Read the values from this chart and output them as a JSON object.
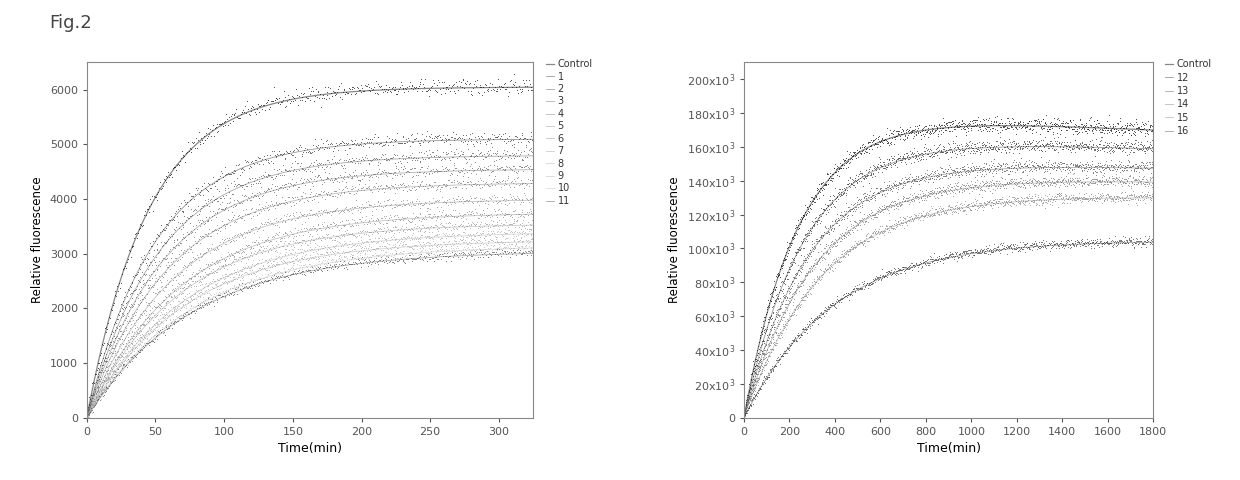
{
  "fig_title": "Fig.2",
  "left": {
    "xlabel": "Time(min)",
    "ylabel": "Relative fluorescence",
    "xlim": [
      0,
      325
    ],
    "ylim": [
      0,
      6500
    ],
    "xticks": [
      0,
      50,
      100,
      150,
      200,
      250,
      300
    ],
    "yticks": [
      0,
      1000,
      2000,
      3000,
      4000,
      5000,
      6000
    ],
    "series": [
      {
        "label": "Control",
        "Amax": 6050,
        "k": 0.022,
        "color": "#111111",
        "lw": 1.5
      },
      {
        "label": "1",
        "Amax": 5100,
        "k": 0.02,
        "color": "#333333",
        "lw": 1.0
      },
      {
        "label": "2",
        "Amax": 4800,
        "k": 0.019,
        "color": "#555555",
        "lw": 1.0
      },
      {
        "label": "3",
        "Amax": 4550,
        "k": 0.018,
        "color": "#666666",
        "lw": 1.0
      },
      {
        "label": "4",
        "Amax": 4300,
        "k": 0.017,
        "color": "#777777",
        "lw": 1.0
      },
      {
        "label": "5",
        "Amax": 4000,
        "k": 0.016,
        "color": "#888888",
        "lw": 1.0
      },
      {
        "label": "6",
        "Amax": 3750,
        "k": 0.015,
        "color": "#888888",
        "lw": 1.0
      },
      {
        "label": "7",
        "Amax": 3550,
        "k": 0.015,
        "color": "#999999",
        "lw": 1.0
      },
      {
        "label": "8",
        "Amax": 3400,
        "k": 0.014,
        "color": "#aaaaaa",
        "lw": 1.0
      },
      {
        "label": "9",
        "Amax": 3250,
        "k": 0.014,
        "color": "#aaaaaa",
        "lw": 1.0
      },
      {
        "label": "10",
        "Amax": 3150,
        "k": 0.013,
        "color": "#bbbbbb",
        "lw": 1.0
      },
      {
        "label": "11",
        "Amax": 3050,
        "k": 0.013,
        "color": "#555555",
        "lw": 1.0
      }
    ]
  },
  "right": {
    "xlabel": "Time(min)",
    "ylabel": "Relative fluorescence",
    "xlim": [
      0,
      1800
    ],
    "ylim": [
      0,
      210000
    ],
    "xticks": [
      0,
      200,
      400,
      600,
      800,
      1000,
      1200,
      1400,
      1600,
      1800
    ],
    "yticks": [
      0,
      20000,
      40000,
      60000,
      80000,
      100000,
      120000,
      140000,
      160000,
      180000,
      200000
    ],
    "series": [
      {
        "label": "Control",
        "Amax": 178000,
        "k": 0.0042,
        "decline": 3.5e-05,
        "color": "#111111",
        "lw": 1.5
      },
      {
        "label": "12",
        "Amax": 165000,
        "k": 0.0038,
        "decline": 2.8e-05,
        "color": "#333333",
        "lw": 1.0
      },
      {
        "label": "13",
        "Amax": 152000,
        "k": 0.0035,
        "decline": 2.2e-05,
        "color": "#555555",
        "lw": 1.0
      },
      {
        "label": "14",
        "Amax": 143000,
        "k": 0.0032,
        "decline": 1.8e-05,
        "color": "#777777",
        "lw": 1.0
      },
      {
        "label": "15",
        "Amax": 133000,
        "k": 0.0029,
        "decline": 1.4e-05,
        "color": "#888888",
        "lw": 1.0
      },
      {
        "label": "16",
        "Amax": 106000,
        "k": 0.0025,
        "decline": 8e-06,
        "color": "#444444",
        "lw": 1.0
      }
    ]
  }
}
